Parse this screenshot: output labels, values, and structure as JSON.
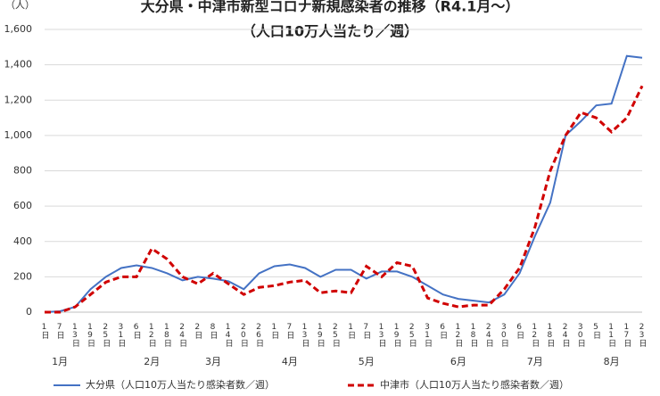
{
  "chart_data": {
    "type": "line",
    "title": "大分県・中津市新型コロナ新規感染者の推移（R4.1月〜）",
    "subtitle": "（人口10万人当たり／週）",
    "y_unit": "（人）",
    "categories": [
      "1日",
      "7日",
      "13日",
      "19日",
      "25日",
      "31日",
      "6日",
      "12日",
      "18日",
      "24日",
      "2日",
      "8日",
      "14日",
      "20日",
      "26日",
      "1日",
      "7日",
      "13日",
      "19日",
      "25日",
      "1日",
      "7日",
      "13日",
      "19日",
      "25日",
      "31日",
      "6日",
      "12日",
      "18日",
      "24日",
      "30日",
      "6日",
      "12日",
      "18日",
      "24日",
      "30日",
      "5日",
      "11日",
      "17日",
      "23日"
    ],
    "months": [
      null,
      "1月",
      null,
      null,
      null,
      null,
      null,
      "2月",
      null,
      null,
      null,
      "3月",
      null,
      null,
      null,
      null,
      "4月",
      null,
      null,
      null,
      null,
      "5月",
      null,
      null,
      null,
      null,
      null,
      "6月",
      null,
      null,
      null,
      null,
      "7月",
      null,
      null,
      null,
      null,
      "8月",
      null,
      null
    ],
    "series": [
      {
        "name": "大分県（人口10万人当たり感染者数／週）",
        "color": "#4472c4",
        "dashed": false,
        "values": [
          0,
          5,
          30,
          130,
          200,
          250,
          265,
          250,
          220,
          180,
          200,
          190,
          175,
          130,
          220,
          260,
          270,
          250,
          200,
          240,
          240,
          190,
          230,
          230,
          200,
          150,
          100,
          75,
          65,
          55,
          100,
          220,
          430,
          620,
          1000,
          1080,
          1170,
          1180,
          1450,
          1440
        ]
      },
      {
        "name": "中津市（人口10万人当たり感染者数／週）",
        "color": "#d00000",
        "dashed": true,
        "values": [
          0,
          0,
          30,
          100,
          170,
          200,
          200,
          360,
          300,
          200,
          160,
          220,
          160,
          100,
          140,
          150,
          170,
          180,
          110,
          120,
          110,
          260,
          200,
          280,
          260,
          80,
          50,
          30,
          40,
          40,
          130,
          250,
          480,
          800,
          1000,
          1130,
          1100,
          1020,
          1100,
          1280
        ]
      }
    ],
    "ylim": [
      0,
      1600
    ],
    "yticks": [
      0,
      200,
      400,
      600,
      800,
      {
        "value": 1000,
        "label": "1,000"
      },
      {
        "value": 1200,
        "label": "1,200"
      },
      {
        "value": 1400,
        "label": "1,400"
      },
      {
        "value": 1600,
        "label": "1,600"
      }
    ],
    "grid": true
  }
}
